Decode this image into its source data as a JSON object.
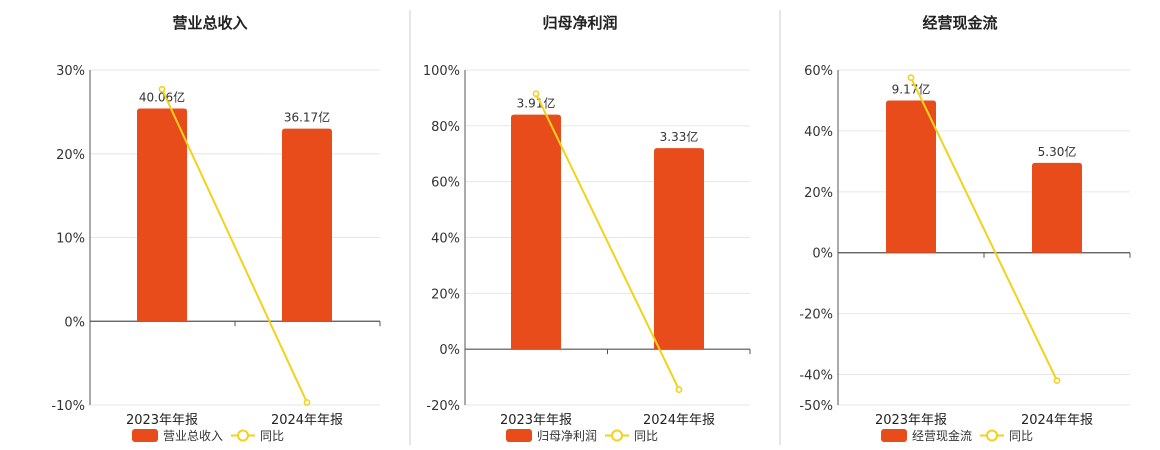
{
  "colors": {
    "bar": "#e84c1a",
    "line": "#f2d21b",
    "grid": "#e6e6e6",
    "axis": "#555555",
    "divider": "#cccccc"
  },
  "chart_data": [
    {
      "type": "bar",
      "title": "营业总收入",
      "categories": [
        "2023年年报",
        "2024年年报"
      ],
      "series": [
        {
          "name": "营业总收入",
          "type": "bar",
          "values": [
            25.4,
            23.0
          ],
          "labels": [
            "40.06亿",
            "36.17亿"
          ]
        },
        {
          "name": "同比",
          "type": "line",
          "values": [
            27.7,
            -9.7
          ]
        }
      ],
      "yticks": [
        30,
        20,
        10,
        0,
        -10
      ],
      "ytick_labels": [
        "30%",
        "20%",
        "10%",
        "0%",
        "-10%"
      ],
      "ylim": [
        -10,
        30
      ],
      "grid": true,
      "legend": "bottom"
    },
    {
      "type": "bar",
      "title": "归母净利润",
      "categories": [
        "2023年年报",
        "2024年年报"
      ],
      "series": [
        {
          "name": "归母净利润",
          "type": "bar",
          "values": [
            84.0,
            72.0
          ],
          "labels": [
            "3.91亿",
            "3.33亿"
          ]
        },
        {
          "name": "同比",
          "type": "line",
          "values": [
            91.5,
            -14.5
          ]
        }
      ],
      "yticks": [
        100,
        80,
        60,
        40,
        20,
        0,
        -20
      ],
      "ytick_labels": [
        "100%",
        "80%",
        "60%",
        "40%",
        "20%",
        "0%",
        "-20%"
      ],
      "ylim": [
        -20,
        100
      ],
      "grid": true,
      "legend": "bottom"
    },
    {
      "type": "bar",
      "title": "经营现金流",
      "categories": [
        "2023年年报",
        "2024年年报"
      ],
      "series": [
        {
          "name": "经营现金流",
          "type": "bar",
          "values": [
            50.0,
            29.5
          ],
          "labels": [
            "9.17亿",
            "5.30亿"
          ]
        },
        {
          "name": "同比",
          "type": "line",
          "values": [
            57.5,
            -42.0
          ]
        }
      ],
      "yticks": [
        60,
        40,
        20,
        0,
        -20,
        -40,
        -50
      ],
      "ytick_labels": [
        "60%",
        "40%",
        "20%",
        "0%",
        "-20%",
        "-40%",
        "-50%"
      ],
      "ylim": [
        -50,
        60
      ],
      "grid": true,
      "legend": "bottom"
    }
  ]
}
